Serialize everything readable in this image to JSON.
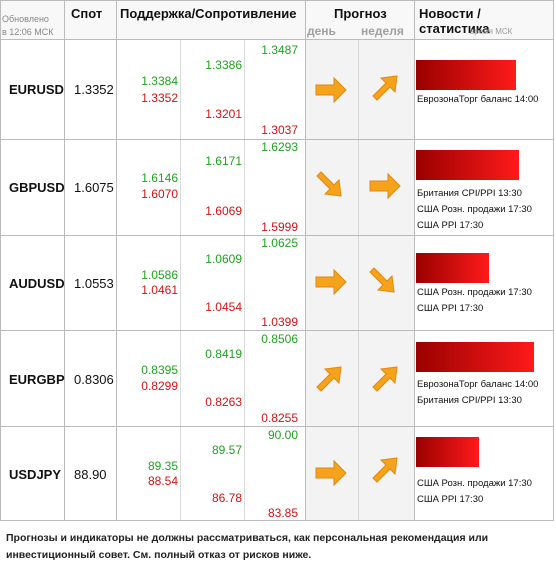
{
  "header": {
    "updated_line1": "Обновлено",
    "updated_line2": "в 12:06 МСК",
    "spot": "Спот",
    "support_resistance": "Поддержка/Сопротивление",
    "forecast": "Прогноз",
    "day": "день",
    "week": "неделя",
    "news_stats": "Новости / статистика",
    "time_msk": "время МСК"
  },
  "rows": [
    {
      "symbol": "EURUSD",
      "spot": "1.3352",
      "levels": {
        "r3": "1.3487",
        "r2": "1.3386",
        "r1": "1.3384",
        "s1": "1.3352",
        "s2": "1.3201",
        "s3": "1.3037"
      },
      "day_arrow": "arrow-right-icon",
      "week_arrow": "arrow-up-right-icon",
      "bar_fraction": 0.85,
      "news": [
        "ЕврозонаТорг баланс 14:00"
      ]
    },
    {
      "symbol": "GBPUSD",
      "spot": "1.6075",
      "levels": {
        "r3": "1.6293",
        "r2": "1.6171",
        "r1": "1.6146",
        "s1": "1.6070",
        "s2": "1.6069",
        "s3": "1.5999"
      },
      "day_arrow": "arrow-down-right-icon",
      "week_arrow": "arrow-right-icon",
      "bar_fraction": 0.87,
      "news": [
        "Британия CPI/PPI 13:30",
        "США Розн. продажи 17:30",
        "США PPI 17:30"
      ]
    },
    {
      "symbol": "AUDUSD",
      "spot": "1.0553",
      "levels": {
        "r3": "1.0625",
        "r2": "1.0609",
        "r1": "1.0586",
        "s1": "1.0461",
        "s2": "1.0454",
        "s3": "1.0399"
      },
      "day_arrow": "arrow-right-icon",
      "week_arrow": "arrow-down-right-icon",
      "bar_fraction": 0.62,
      "news": [
        "США Розн. продажи 17:30",
        "США PPI 17:30"
      ]
    },
    {
      "symbol": "EURGBP",
      "spot": "0.8306",
      "levels": {
        "r3": "0.8506",
        "r2": "0.8419",
        "r1": "0.8395",
        "s1": "0.8299",
        "s2": "0.8263",
        "s3": "0.8255"
      },
      "day_arrow": "arrow-up-right-icon",
      "week_arrow": "arrow-up-right-icon",
      "bar_fraction": 1.0,
      "news": [
        "ЕврозонаТорг баланс 14:00",
        "Британия CPI/PPI 13:30"
      ]
    },
    {
      "symbol": "USDJPY",
      "spot": "88.90",
      "levels": {
        "r3": "90.00",
        "r2": "89.57",
        "r1": "89.35",
        "s1": "88.54",
        "s2": "86.78",
        "s3": "83.85"
      },
      "day_arrow": "arrow-right-icon",
      "week_arrow": "arrow-up-right-icon",
      "bar_fraction": 0.53,
      "news": [
        "США Розн. продажи 17:30",
        "США PPI 17:30"
      ]
    }
  ],
  "disclaimer": "Прогнозы и индикаторы не должны рассматриваться, как персональная рекомендация или инвестиционный совет. См. полный отказ от рисков ниже.",
  "colors": {
    "support": "#d01414",
    "resistance": "#1fa21f",
    "arrow": "#f7a21b",
    "bar_dark": "#9a0000",
    "bar_light": "#ff1a1a"
  }
}
